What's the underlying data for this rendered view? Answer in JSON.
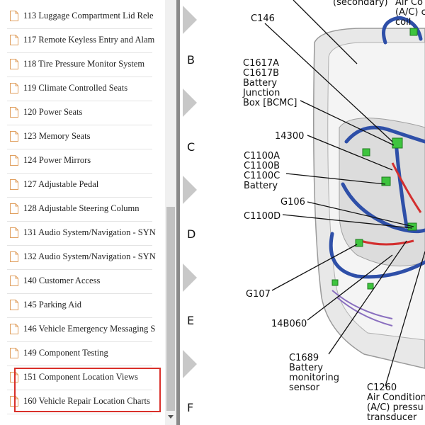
{
  "sidebar": {
    "items": [
      "113 Luggage Compartment Lid Rele",
      "117 Remote Keyless Entry and Alam",
      "118 Tire Pressure Monitor System",
      "119 Climate Controlled Seats",
      "120 Power Seats",
      "123 Memory Seats",
      "124 Power Mirrors",
      "127 Adjustable Pedal",
      "128 Adjustable Steering Column",
      "131 Audio System/Navigation - SYN",
      "132 Audio System/Navigation - SYN",
      "140 Customer Access",
      "145 Parking Aid",
      "146 Vehicle Emergency Messaging S",
      "149 Component Testing",
      "151 Component Location Views",
      "160 Vehicle Repair Location Charts"
    ]
  },
  "diagram": {
    "rows": [
      "B",
      "C",
      "D",
      "E",
      "F"
    ],
    "labels": [
      {
        "lines": [
          "(secondary)"
        ]
      },
      {
        "lines": [
          "Air Co",
          "(A/C) c",
          "coil"
        ]
      },
      {
        "lines": [
          "C146"
        ]
      },
      {
        "lines": [
          "C1617A",
          "C1617B",
          "Battery",
          "Junction",
          "Box [BCMC]"
        ]
      },
      {
        "lines": [
          "14300"
        ]
      },
      {
        "lines": [
          "C1100A",
          "C1100B",
          "C1100C",
          "Battery"
        ]
      },
      {
        "lines": [
          "G106"
        ]
      },
      {
        "lines": [
          "C1100D"
        ]
      },
      {
        "lines": [
          "G107"
        ]
      },
      {
        "lines": [
          "14B060"
        ]
      },
      {
        "lines": [
          "C1689",
          "Battery",
          "monitoring",
          "sensor"
        ]
      },
      {
        "lines": [
          "C1260",
          "Air Condition",
          "(A/C) pressu",
          "transducer"
        ]
      }
    ]
  }
}
